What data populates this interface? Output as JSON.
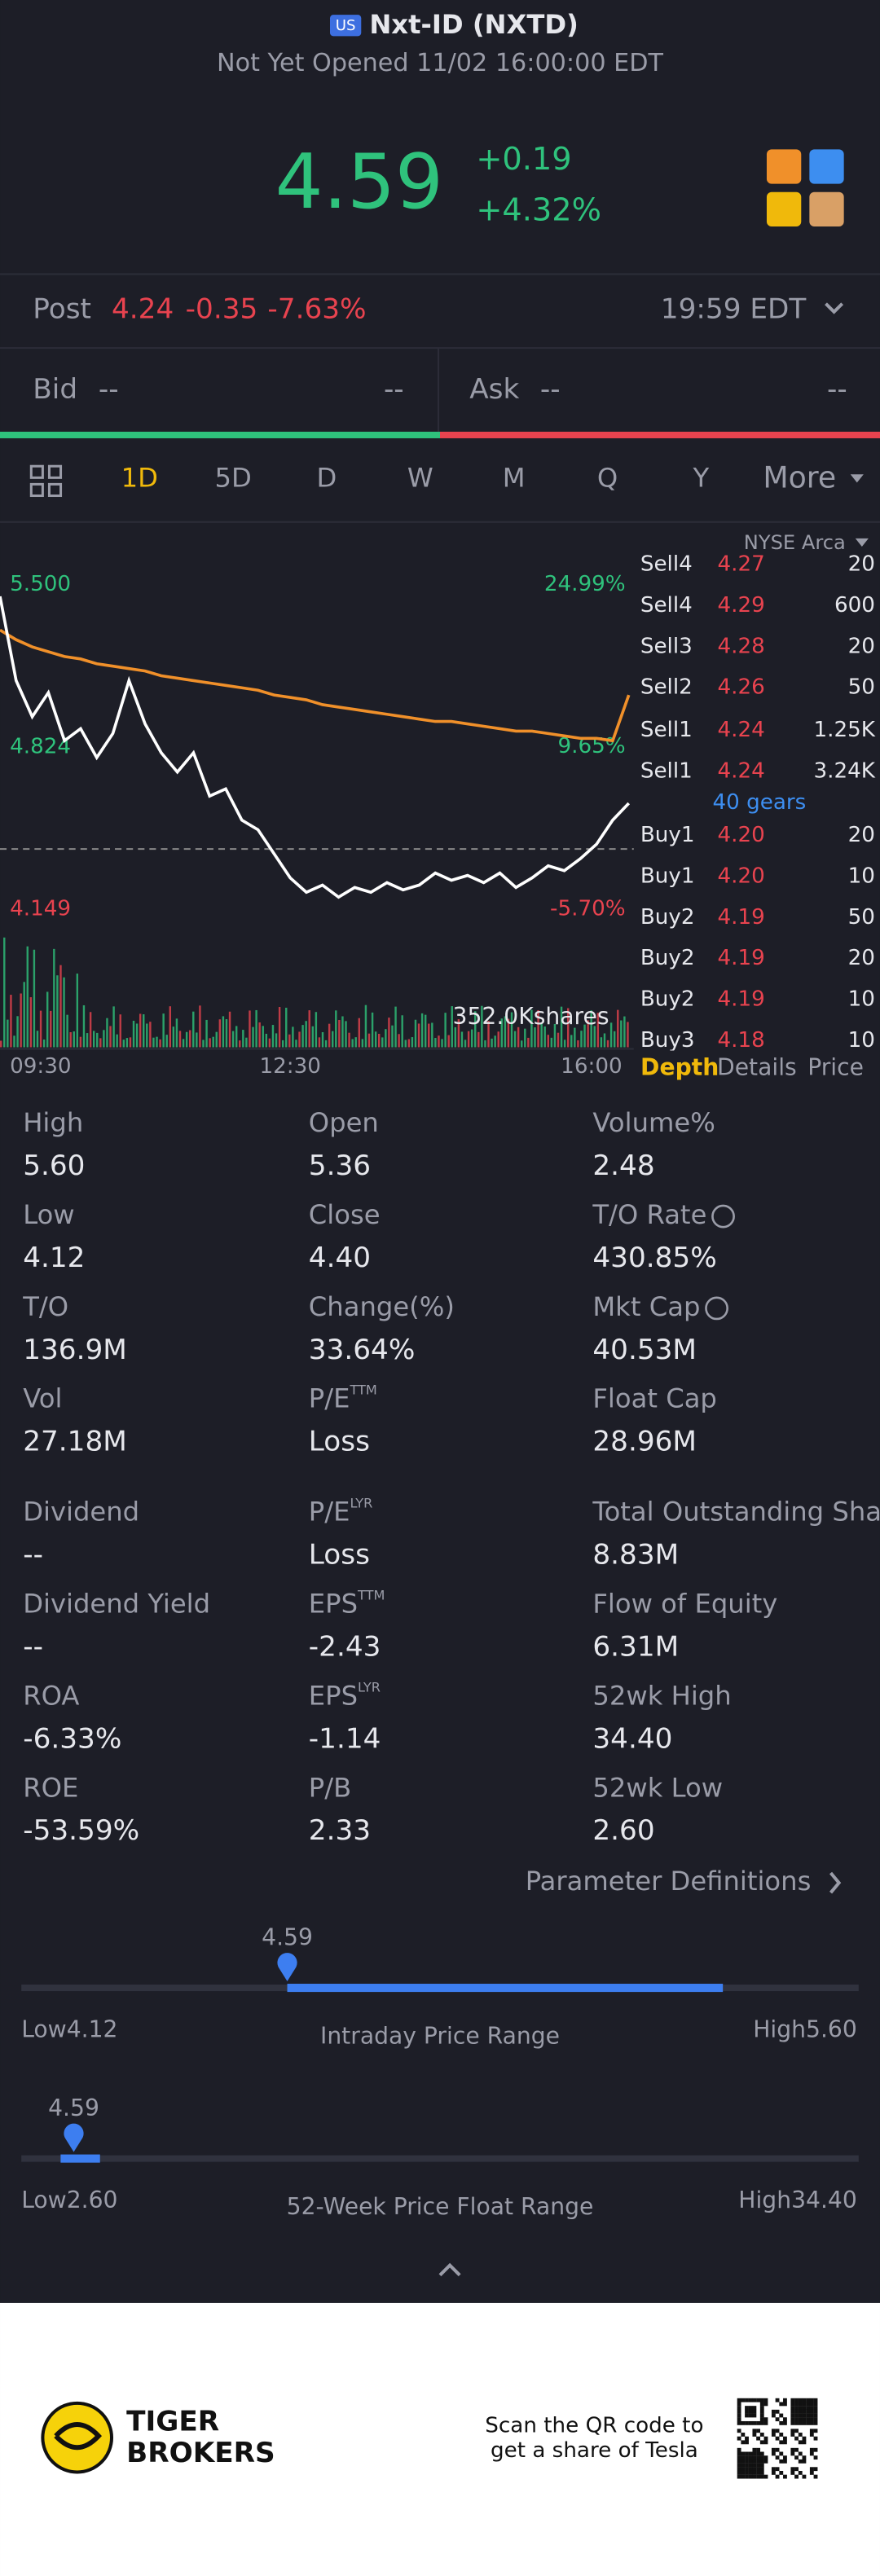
{
  "header": {
    "badge": "US",
    "title": "Nxt-ID (NXTD)",
    "status": "Not Yet Opened 11/02 16:00:00 EDT"
  },
  "quote": {
    "price": "4.59",
    "change": "+0.19",
    "change_pct": "+4.32%"
  },
  "post": {
    "label": "Post",
    "price": "4.24",
    "change": "-0.35",
    "change_pct": "-7.63%",
    "time": "19:59 EDT"
  },
  "bid_ask": {
    "bid_label": "Bid",
    "bid_price": "--",
    "bid_size": "--",
    "ask_label": "Ask",
    "ask_price": "--",
    "ask_size": "--"
  },
  "tabs": [
    "1D",
    "5D",
    "D",
    "W",
    "M",
    "Q",
    "Y",
    "More"
  ],
  "chart_data": {
    "type": "line",
    "x": [
      0,
      10,
      20,
      30,
      40,
      50,
      60,
      70,
      80,
      90,
      100,
      110,
      120,
      130,
      140,
      150,
      160,
      170,
      180,
      190,
      200,
      210,
      220,
      230,
      240,
      250,
      260,
      270,
      280,
      290,
      300,
      310,
      320,
      330,
      340,
      350,
      360,
      370,
      380,
      390
    ],
    "series": [
      {
        "color": "#ffffff",
        "values": [
          5.45,
          5.1,
          4.95,
          5.05,
          4.85,
          4.9,
          4.78,
          4.88,
          5.1,
          4.92,
          4.8,
          4.72,
          4.8,
          4.62,
          4.65,
          4.52,
          4.48,
          4.38,
          4.28,
          4.22,
          4.25,
          4.2,
          4.24,
          4.22,
          4.26,
          4.23,
          4.25,
          4.3,
          4.27,
          4.29,
          4.26,
          4.3,
          4.24,
          4.28,
          4.33,
          4.31,
          4.36,
          4.42,
          4.52,
          4.59
        ]
      },
      {
        "color": "#f0902a",
        "values": [
          5.31,
          5.27,
          5.24,
          5.22,
          5.2,
          5.19,
          5.17,
          5.16,
          5.15,
          5.14,
          5.12,
          5.11,
          5.1,
          5.09,
          5.08,
          5.07,
          5.06,
          5.04,
          5.03,
          5.02,
          5.0,
          4.99,
          4.98,
          4.97,
          4.96,
          4.95,
          4.94,
          4.93,
          4.93,
          4.92,
          4.91,
          4.9,
          4.89,
          4.89,
          4.88,
          4.87,
          4.86,
          4.86,
          4.85,
          5.04
        ]
      }
    ],
    "xlim": [
      0,
      390
    ],
    "xticks": [
      {
        "value": 0,
        "label": "09:30"
      },
      {
        "value": 180,
        "label": "12:30"
      },
      {
        "value": 390,
        "label": "16:00"
      }
    ],
    "ylim": [
      4.108,
      5.575
    ],
    "yticks": [
      {
        "value": 5.5,
        "label": "5.500"
      },
      {
        "value": 4.824,
        "label": "4.824"
      },
      {
        "value": 4.149,
        "label": "4.149"
      }
    ],
    "y2lim": [
      -6.636,
      26.7
    ],
    "y2ticks": [
      {
        "value": 24.99,
        "label": "24.99%"
      },
      {
        "value": 9.65,
        "label": "9.65%"
      },
      {
        "value": -5.7,
        "label": "-5.70%"
      }
    ],
    "volume_label": "352.0Kshares"
  },
  "order_book": {
    "exchange": "NYSE Arca",
    "sells": [
      [
        "Sell4",
        "4.27",
        "20"
      ],
      [
        "Sell4",
        "4.29",
        "600"
      ],
      [
        "Sell3",
        "4.28",
        "20"
      ],
      [
        "Sell2",
        "4.26",
        "50"
      ],
      [
        "Sell1",
        "4.24",
        "1.25K"
      ],
      [
        "Sell1",
        "4.24",
        "3.24K"
      ]
    ],
    "gears": "40 gears",
    "buys": [
      [
        "Buy1",
        "4.20",
        "20"
      ],
      [
        "Buy1",
        "4.20",
        "10"
      ],
      [
        "Buy2",
        "4.19",
        "50"
      ],
      [
        "Buy2",
        "4.19",
        "20"
      ],
      [
        "Buy2",
        "4.19",
        "10"
      ],
      [
        "Buy3",
        "4.18",
        "10"
      ]
    ],
    "tabs": [
      "Depth",
      "Details",
      "Price"
    ]
  },
  "stats": [
    [
      {
        "label": "High",
        "value": "5.60"
      },
      {
        "label": "Open",
        "value": "5.36"
      },
      {
        "label": "Volume%",
        "value": "2.48"
      }
    ],
    [
      {
        "label": "Low",
        "value": "4.12"
      },
      {
        "label": "Close",
        "value": "4.40"
      },
      {
        "label": "T/O Rate",
        "value": "430.85%",
        "info": true
      }
    ],
    [
      {
        "label": "T/O",
        "value": "136.9M"
      },
      {
        "label": "Change(%)",
        "value": "33.64%"
      },
      {
        "label": "Mkt Cap",
        "value": "40.53M",
        "info": true
      }
    ],
    [
      {
        "label": "Vol",
        "value": "27.18M"
      },
      {
        "label": "P/E",
        "sup": "TTM",
        "value": "Loss"
      },
      {
        "label": "Float Cap",
        "value": "28.96M"
      }
    ],
    [
      {
        "label": "Dividend",
        "value": "--"
      },
      {
        "label": "P/E",
        "sup": "LYR",
        "value": "Loss"
      },
      {
        "label": "Total Outstanding Shares",
        "value": "8.83M"
      }
    ],
    [
      {
        "label": "Dividend Yield",
        "value": "--"
      },
      {
        "label": "EPS",
        "sup": "TTM",
        "value": "-2.43"
      },
      {
        "label": "Flow of Equity",
        "value": "6.31M"
      }
    ],
    [
      {
        "label": "ROA",
        "value": "-6.33%"
      },
      {
        "label": "EPS",
        "sup": "LYR",
        "value": "-1.14"
      },
      {
        "label": "52wk High",
        "value": "34.40"
      }
    ],
    [
      {
        "label": "ROE",
        "value": "-53.59%"
      },
      {
        "label": "P/B",
        "value": "2.33"
      },
      {
        "label": "52wk Low",
        "value": "2.60"
      }
    ]
  ],
  "param_link": "Parameter Definitions",
  "ranges": [
    {
      "current": "4.59",
      "low_label": "Low",
      "low": "4.12",
      "title": "Intraday Price Range",
      "high_label": "High",
      "high": "5.60"
    },
    {
      "current": "4.59",
      "low_label": "Low",
      "low": "2.60",
      "title": "52-Week Price Float Range",
      "high_label": "High",
      "high": "34.40"
    }
  ],
  "footer": {
    "brand": [
      "TIGER",
      "BROKERS"
    ],
    "qr_text": [
      "Scan the QR code to",
      "get a share of Tesla"
    ]
  }
}
